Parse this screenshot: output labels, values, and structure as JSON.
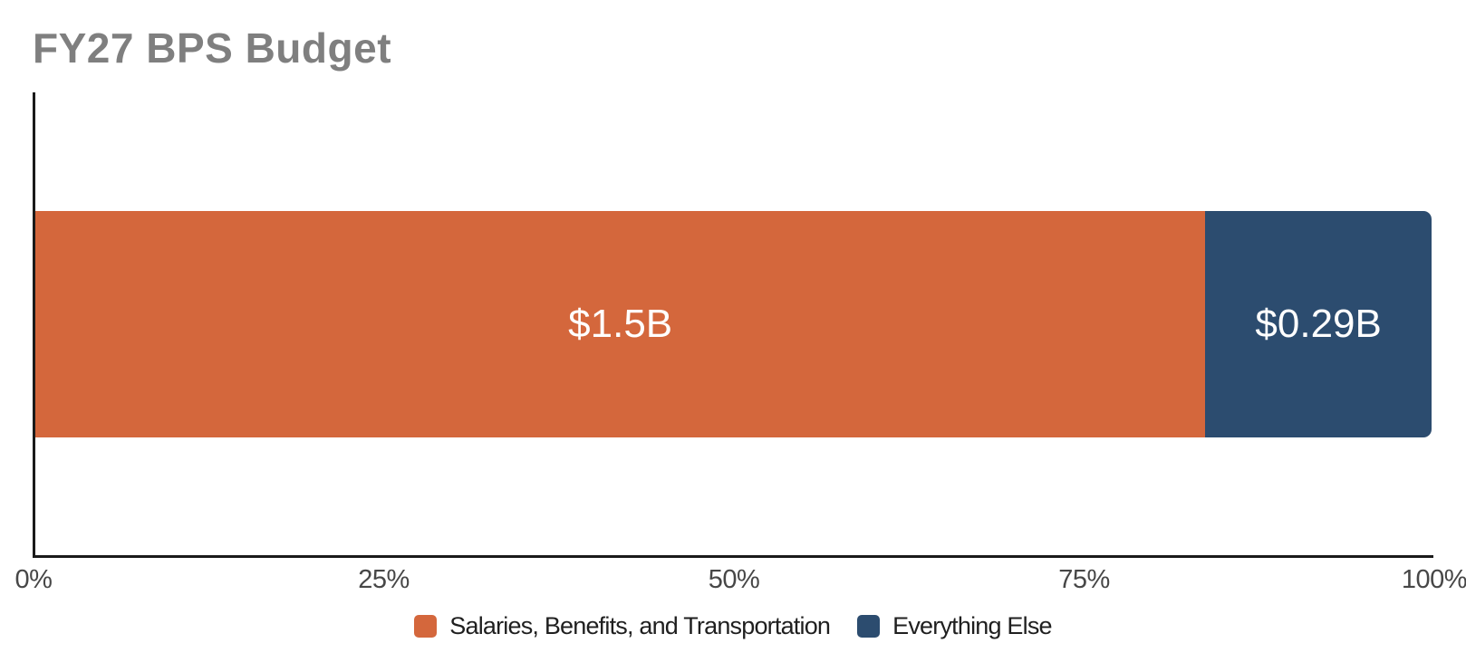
{
  "page": {
    "background": "#ffffff"
  },
  "chart_data": {
    "type": "bar",
    "orientation": "horizontal",
    "stacked": true,
    "title": "FY27 BPS Budget",
    "title_color": "#7f7f7f",
    "categories": [
      "FY27 BPS Budget"
    ],
    "series": [
      {
        "name": "Salaries, Benefits, and Transportation",
        "values": [
          1.5
        ],
        "data_label": "$1.5B",
        "color": "#d4673c"
      },
      {
        "name": "Everything Else",
        "values": [
          0.29
        ],
        "data_label": "$0.29B",
        "color": "#2c4c6f"
      }
    ],
    "x_ticks": [
      "0%",
      "25%",
      "50%",
      "75%",
      "100%"
    ],
    "xlim": [
      0,
      100
    ],
    "x_unit": "percent",
    "grid": false,
    "axis_color": "#1a1a1a",
    "tick_label_color": "#474747",
    "bar_label_color": "#ffffff",
    "legend_position": "bottom",
    "legend_text_color": "#1f1f1f"
  }
}
